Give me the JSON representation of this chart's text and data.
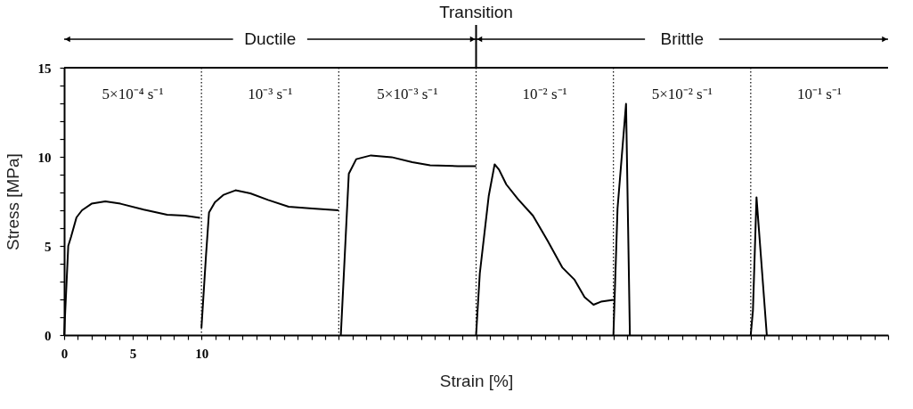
{
  "chart_data": {
    "type": "line",
    "xlabel": "Strain [%]",
    "ylabel": "Stress [MPa]",
    "xlim": [
      0,
      60
    ],
    "ylim": [
      0,
      15
    ],
    "xticks": [
      0,
      {
        "value": 1,
        "label": null
      },
      {
        "value": 2,
        "label": null
      },
      {
        "value": 3,
        "label": null
      },
      {
        "value": 4,
        "label": null
      },
      5,
      {
        "value": 6,
        "label": null
      },
      {
        "value": 7,
        "label": null
      },
      {
        "value": 8,
        "label": null
      },
      {
        "value": 9,
        "label": null
      },
      10,
      {
        "value": 11,
        "label": null
      },
      {
        "value": 12,
        "label": null
      },
      {
        "value": 13,
        "label": null
      },
      {
        "value": 14,
        "label": null
      },
      {
        "value": 15,
        "label": null
      },
      {
        "value": 16,
        "label": null
      },
      {
        "value": 17,
        "label": null
      },
      {
        "value": 18,
        "label": null
      },
      {
        "value": 19,
        "label": null
      },
      {
        "value": 20,
        "label": null
      },
      {
        "value": 21,
        "label": null
      },
      {
        "value": 22,
        "label": null
      },
      {
        "value": 23,
        "label": null
      },
      {
        "value": 24,
        "label": null
      },
      {
        "value": 25,
        "label": null
      },
      {
        "value": 26,
        "label": null
      },
      {
        "value": 27,
        "label": null
      },
      {
        "value": 28,
        "label": null
      },
      {
        "value": 29,
        "label": null
      },
      {
        "value": 30,
        "label": null
      },
      {
        "value": 31,
        "label": null
      },
      {
        "value": 32,
        "label": null
      },
      {
        "value": 33,
        "label": null
      },
      {
        "value": 34,
        "label": null
      },
      {
        "value": 35,
        "label": null
      },
      {
        "value": 36,
        "label": null
      },
      {
        "value": 37,
        "label": null
      },
      {
        "value": 38,
        "label": null
      },
      {
        "value": 39,
        "label": null
      },
      {
        "value": 40,
        "label": null
      },
      {
        "value": 41,
        "label": null
      },
      {
        "value": 42,
        "label": null
      },
      {
        "value": 43,
        "label": null
      },
      {
        "value": 44,
        "label": null
      },
      {
        "value": 45,
        "label": null
      },
      {
        "value": 46,
        "label": null
      },
      {
        "value": 47,
        "label": null
      },
      {
        "value": 48,
        "label": null
      },
      {
        "value": 49,
        "label": null
      },
      {
        "value": 50,
        "label": null
      },
      {
        "value": 51,
        "label": null
      },
      {
        "value": 52,
        "label": null
      },
      {
        "value": 53,
        "label": null
      },
      {
        "value": 54,
        "label": null
      },
      {
        "value": 55,
        "label": null
      },
      {
        "value": 56,
        "label": null
      },
      {
        "value": 57,
        "label": null
      },
      {
        "value": 58,
        "label": null
      },
      {
        "value": 59,
        "label": null
      },
      {
        "value": 60,
        "label": null
      }
    ],
    "yticks": [
      0,
      {
        "value": 1,
        "label": null
      },
      {
        "value": 2,
        "label": null
      },
      {
        "value": 3,
        "label": null
      },
      {
        "value": 4,
        "label": null
      },
      5,
      {
        "value": 6,
        "label": null
      },
      {
        "value": 7,
        "label": null
      },
      {
        "value": 8,
        "label": null
      },
      {
        "value": 9,
        "label": null
      },
      10,
      {
        "value": 11,
        "label": null
      },
      {
        "value": 12,
        "label": null
      },
      {
        "value": 13,
        "label": null
      },
      {
        "value": 14,
        "label": null
      },
      15
    ],
    "ref_lines": [
      {
        "axis": "x",
        "value": 10,
        "line_style": "dotted"
      },
      {
        "axis": "x",
        "value": 20,
        "line_style": "dotted"
      },
      {
        "axis": "x",
        "value": 30,
        "line_style": "dotted"
      },
      {
        "axis": "x",
        "value": 40,
        "line_style": "dotted"
      },
      {
        "axis": "x",
        "value": 50,
        "line_style": "dotted"
      }
    ],
    "annotations": [
      "5×10⁻⁴ s⁻¹",
      "10⁻³ s⁻¹",
      "5×10⁻³ s⁻¹",
      "10⁻² s⁻¹",
      "5×10⁻² s⁻¹",
      "10⁻¹ s⁻¹",
      "Ductile",
      "Transition",
      "Brittle"
    ],
    "series": [
      {
        "color": "#000000",
        "x": [
          0,
          0.3,
          0.5,
          0.9,
          1.3,
          2,
          3,
          4.1,
          5.8,
          7.5,
          8.8,
          9.9
        ],
        "values": [
          0,
          5,
          5.5,
          6.6,
          7.0,
          7.37,
          7.5,
          7.37,
          7.04,
          6.75,
          6.7,
          6.58
        ]
      },
      {
        "color": "#000000",
        "x": [
          10,
          10.33,
          10.55,
          10.98,
          11.62,
          12.48,
          13.56,
          14.85,
          16.35,
          18.07,
          19.97
        ],
        "values": [
          0.4,
          4.45,
          6.87,
          7.45,
          7.87,
          8.12,
          7.95,
          7.58,
          7.2,
          7.1,
          7.0
        ]
      },
      {
        "color": "#000000",
        "x": [
          20.15,
          20.73,
          21.27,
          22.34,
          23.85,
          25.35,
          26.65,
          28.67,
          30
        ],
        "values": [
          0,
          9.05,
          9.87,
          10.08,
          9.98,
          9.7,
          9.53,
          9.48,
          9.48
        ]
      },
      {
        "color": "#000000",
        "x": [
          30,
          30.27,
          30.92,
          31.35,
          31.67,
          32.2,
          33.06,
          34.14,
          35.22,
          36.29,
          37.15,
          37.9,
          38.55,
          39.09,
          40
        ],
        "values": [
          0,
          3.45,
          7.8,
          9.58,
          9.28,
          8.45,
          7.62,
          6.7,
          5.28,
          3.78,
          3.12,
          2.12,
          1.7,
          1.87,
          1.98
        ]
      },
      {
        "color": "#000000",
        "x": [
          40,
          40.3,
          40.92,
          41.2
        ],
        "values": [
          0,
          7.1,
          12.98,
          0
        ]
      },
      {
        "color": "#000000",
        "x": [
          50,
          50.16,
          50.42,
          51.17
        ],
        "values": [
          0,
          1.37,
          7.73,
          0
        ]
      }
    ]
  }
}
